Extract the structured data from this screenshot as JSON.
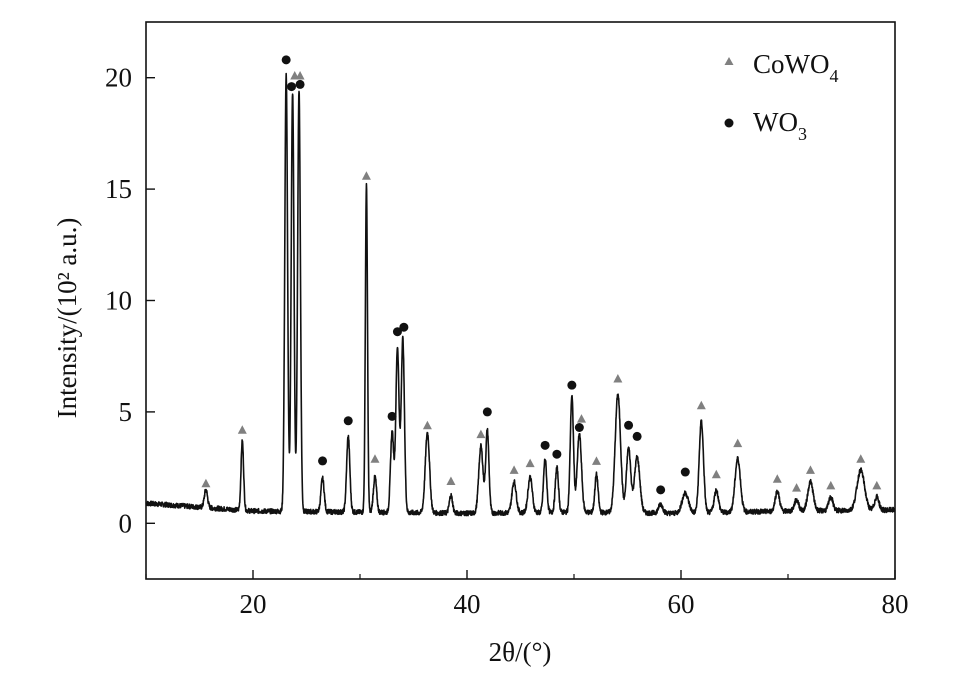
{
  "chart_data": {
    "type": "line",
    "xlabel": "2θ/(°)",
    "ylabel": "Intensity/(10² a.u.)",
    "xlim": [
      10,
      80
    ],
    "ylim": [
      -2.5,
      22.5
    ],
    "xticks": [
      20,
      40,
      60,
      80
    ],
    "yticks": [
      0,
      5,
      10,
      15,
      20
    ],
    "grid": false,
    "legend_position": "top-right",
    "legend": [
      {
        "label": "CoWO",
        "sub": "4",
        "marker": "triangle",
        "color": "#808080"
      },
      {
        "label": "WO",
        "sub": "3",
        "marker": "circle",
        "color": "#111111"
      }
    ],
    "baseline": [
      [
        10,
        0.9
      ],
      [
        20,
        0.55
      ],
      [
        30,
        0.5
      ],
      [
        40,
        0.45
      ],
      [
        50,
        0.5
      ],
      [
        60,
        0.45
      ],
      [
        70,
        0.55
      ],
      [
        80,
        0.6
      ]
    ],
    "peaks": [
      {
        "x": 15.6,
        "h": 0.8,
        "w": 0.15
      },
      {
        "x": 19.0,
        "h": 3.1,
        "w": 0.12
      },
      {
        "x": 23.1,
        "h": 19.6,
        "w": 0.13
      },
      {
        "x": 23.7,
        "h": 18.8,
        "w": 0.13
      },
      {
        "x": 24.3,
        "h": 18.9,
        "w": 0.13
      },
      {
        "x": 26.5,
        "h": 1.5,
        "w": 0.15
      },
      {
        "x": 28.9,
        "h": 3.4,
        "w": 0.15
      },
      {
        "x": 31.4,
        "h": 1.6,
        "w": 0.15
      },
      {
        "x": 30.6,
        "h": 14.7,
        "w": 0.1
      },
      {
        "x": 33.0,
        "h": 3.6,
        "w": 0.15
      },
      {
        "x": 33.5,
        "h": 7.4,
        "w": 0.15
      },
      {
        "x": 34.0,
        "h": 7.8,
        "w": 0.15
      },
      {
        "x": 36.3,
        "h": 3.6,
        "w": 0.2
      },
      {
        "x": 38.5,
        "h": 0.8,
        "w": 0.15
      },
      {
        "x": 41.3,
        "h": 3.0,
        "w": 0.2
      },
      {
        "x": 41.9,
        "h": 3.7,
        "w": 0.15
      },
      {
        "x": 44.4,
        "h": 1.4,
        "w": 0.2
      },
      {
        "x": 45.9,
        "h": 1.6,
        "w": 0.2
      },
      {
        "x": 47.3,
        "h": 2.4,
        "w": 0.15
      },
      {
        "x": 48.4,
        "h": 2.0,
        "w": 0.15
      },
      {
        "x": 49.8,
        "h": 5.2,
        "w": 0.15
      },
      {
        "x": 50.5,
        "h": 3.5,
        "w": 0.2
      },
      {
        "x": 52.1,
        "h": 1.7,
        "w": 0.15
      },
      {
        "x": 54.1,
        "h": 5.3,
        "w": 0.25
      },
      {
        "x": 55.1,
        "h": 2.9,
        "w": 0.2
      },
      {
        "x": 55.9,
        "h": 2.5,
        "w": 0.25
      },
      {
        "x": 58.1,
        "h": 0.4,
        "w": 0.2
      },
      {
        "x": 60.4,
        "h": 0.9,
        "w": 0.3
      },
      {
        "x": 61.9,
        "h": 4.1,
        "w": 0.2
      },
      {
        "x": 63.3,
        "h": 1.0,
        "w": 0.2
      },
      {
        "x": 65.3,
        "h": 2.4,
        "w": 0.25
      },
      {
        "x": 69.0,
        "h": 0.9,
        "w": 0.2
      },
      {
        "x": 70.8,
        "h": 0.5,
        "w": 0.2
      },
      {
        "x": 72.1,
        "h": 1.3,
        "w": 0.25
      },
      {
        "x": 74.0,
        "h": 0.6,
        "w": 0.2
      },
      {
        "x": 76.8,
        "h": 1.8,
        "w": 0.35
      },
      {
        "x": 78.3,
        "h": 0.6,
        "w": 0.2
      }
    ],
    "series": [
      {
        "name": "CoWO4",
        "marker": "triangle",
        "x": [
          15.6,
          19.0,
          23.9,
          24.4,
          30.6,
          31.4,
          36.3,
          38.5,
          41.3,
          44.4,
          45.9,
          50.7,
          52.1,
          54.1,
          61.9,
          63.3,
          65.3,
          69.0,
          70.8,
          72.1,
          74.0,
          76.8,
          78.3
        ],
        "y": [
          1.8,
          4.2,
          20.1,
          20.1,
          15.6,
          2.9,
          4.4,
          1.9,
          4.0,
          2.4,
          2.7,
          4.7,
          2.8,
          6.5,
          5.3,
          2.2,
          3.6,
          2.0,
          1.6,
          2.4,
          1.7,
          2.9,
          1.7
        ]
      },
      {
        "name": "WO3",
        "marker": "circle",
        "x": [
          23.1,
          23.6,
          24.4,
          26.5,
          28.9,
          33.0,
          33.5,
          34.1,
          41.9,
          47.3,
          48.4,
          49.8,
          50.5,
          55.1,
          55.9,
          58.1,
          60.4
        ],
        "y": [
          20.8,
          19.6,
          19.7,
          2.8,
          4.6,
          4.8,
          8.6,
          8.8,
          5.0,
          3.5,
          3.1,
          6.2,
          4.3,
          4.4,
          3.9,
          1.5,
          2.3
        ]
      }
    ]
  }
}
